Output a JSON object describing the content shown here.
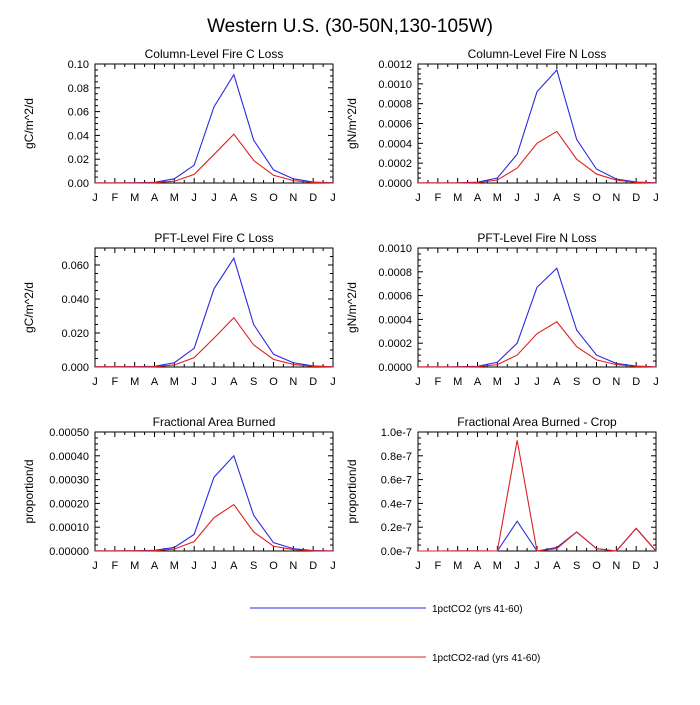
{
  "page": {
    "title": "Western U.S. (30-50N,130-105W)"
  },
  "legend": {
    "placement": "bottom-center",
    "entries": [
      {
        "name": "1pctCO2 (yrs 41-60)",
        "color": "#2a2ae0"
      },
      {
        "name": "1pctCO2-rad (yrs 41-60)",
        "color": "#e02020"
      }
    ]
  },
  "chart_data": [
    {
      "type": "line",
      "title": "Column-Level Fire C Loss",
      "ylabel": "gC/m^2/d",
      "categories": [
        "J",
        "F",
        "M",
        "A",
        "M",
        "J",
        "J",
        "A",
        "S",
        "O",
        "N",
        "D",
        "J"
      ],
      "ylim": [
        0,
        0.1
      ],
      "yticks": [
        0,
        0.02,
        0.04,
        0.06,
        0.08,
        0.1
      ],
      "ytick_labels": [
        "0.00",
        "0.02",
        "0.04",
        "0.06",
        "0.08",
        "0.10"
      ],
      "series": [
        {
          "name": "1pctCO2 (yrs 41-60)",
          "color": "#2a2ae0",
          "values": [
            0.0001,
            0.0001,
            0.0002,
            0.0006,
            0.0035,
            0.015,
            0.064,
            0.091,
            0.036,
            0.011,
            0.0035,
            0.0008,
            0.0002
          ]
        },
        {
          "name": "1pctCO2-rad (yrs 41-60)",
          "color": "#e02020",
          "values": [
            0.0001,
            0.0001,
            0.0001,
            0.0003,
            0.0015,
            0.0072,
            0.024,
            0.041,
            0.019,
            0.0065,
            0.002,
            0.0005,
            0.0001
          ]
        }
      ]
    },
    {
      "type": "line",
      "title": "Column-Level Fire N Loss",
      "ylabel": "gN/m^2/d",
      "categories": [
        "J",
        "F",
        "M",
        "A",
        "M",
        "J",
        "J",
        "A",
        "S",
        "O",
        "N",
        "D",
        "J"
      ],
      "ylim": [
        0,
        0.0012
      ],
      "yticks": [
        0,
        0.0002,
        0.0004,
        0.0006,
        0.0008,
        0.001,
        0.0012
      ],
      "ytick_labels": [
        "0.0000",
        "0.0002",
        "0.0004",
        "0.0006",
        "0.0008",
        "0.0010",
        "0.0012"
      ],
      "series": [
        {
          "name": "1pctCO2 (yrs 41-60)",
          "color": "#2a2ae0",
          "values": [
            1e-06,
            1e-06,
            2e-06,
            8e-06,
            5e-05,
            0.00029,
            0.00092,
            0.00114,
            0.00044,
            0.00014,
            4e-05,
            1e-05,
            2e-06
          ]
        },
        {
          "name": "1pctCO2-rad (yrs 41-60)",
          "color": "#e02020",
          "values": [
            1e-06,
            1e-06,
            1e-06,
            4e-06,
            3e-05,
            0.00015,
            0.0004,
            0.00052,
            0.00024,
            9e-05,
            3e-05,
            6e-06,
            1e-06
          ]
        }
      ]
    },
    {
      "type": "line",
      "title": "PFT-Level Fire C Loss",
      "ylabel": "gC/m^2/d",
      "categories": [
        "J",
        "F",
        "M",
        "A",
        "M",
        "J",
        "J",
        "A",
        "S",
        "O",
        "N",
        "D",
        "J"
      ],
      "ylim": [
        0,
        0.07
      ],
      "yticks": [
        0,
        0.02,
        0.04,
        0.06
      ],
      "ytick_labels": [
        "0.000",
        "0.020",
        "0.040",
        "0.060"
      ],
      "series": [
        {
          "name": "1pctCO2 (yrs 41-60)",
          "color": "#2a2ae0",
          "values": [
            0.0001,
            0.0001,
            0.0002,
            0.0004,
            0.0025,
            0.011,
            0.046,
            0.064,
            0.025,
            0.0075,
            0.0025,
            0.0006,
            0.0001
          ]
        },
        {
          "name": "1pctCO2-rad (yrs 41-60)",
          "color": "#e02020",
          "values": [
            0.0001,
            0.0001,
            0.0001,
            0.0002,
            0.0012,
            0.0055,
            0.017,
            0.029,
            0.013,
            0.0045,
            0.0015,
            0.0004,
            0.0001
          ]
        }
      ]
    },
    {
      "type": "line",
      "title": "PFT-Level Fire N Loss",
      "ylabel": "gN/m^2/d",
      "categories": [
        "J",
        "F",
        "M",
        "A",
        "M",
        "J",
        "J",
        "A",
        "S",
        "O",
        "N",
        "D",
        "J"
      ],
      "ylim": [
        0,
        0.001
      ],
      "yticks": [
        0,
        0.0002,
        0.0004,
        0.0006,
        0.0008,
        0.001
      ],
      "ytick_labels": [
        "0.0000",
        "0.0002",
        "0.0004",
        "0.0006",
        "0.0008",
        "0.0010"
      ],
      "series": [
        {
          "name": "1pctCO2 (yrs 41-60)",
          "color": "#2a2ae0",
          "values": [
            1e-06,
            1e-06,
            2e-06,
            6e-06,
            4e-05,
            0.0002,
            0.00067,
            0.00083,
            0.00031,
            0.0001,
            3e-05,
            8e-06,
            1e-06
          ]
        },
        {
          "name": "1pctCO2-rad (yrs 41-60)",
          "color": "#e02020",
          "values": [
            1e-06,
            1e-06,
            1e-06,
            3e-06,
            2e-05,
            0.0001,
            0.00028,
            0.00038,
            0.00017,
            6e-05,
            2e-05,
            5e-06,
            1e-06
          ]
        }
      ]
    },
    {
      "type": "line",
      "title": "Fractional Area Burned",
      "ylabel": "proportion/d",
      "categories": [
        "J",
        "F",
        "M",
        "A",
        "M",
        "J",
        "J",
        "A",
        "S",
        "O",
        "N",
        "D",
        "J"
      ],
      "ylim": [
        0,
        0.0005
      ],
      "yticks": [
        0,
        0.0001,
        0.0002,
        0.0003,
        0.0004,
        0.0005
      ],
      "ytick_labels": [
        "0.00000",
        "0.00010",
        "0.00020",
        "0.00030",
        "0.00040",
        "0.00050"
      ],
      "series": [
        {
          "name": "1pctCO2 (yrs 41-60)",
          "color": "#2a2ae0",
          "values": [
            5e-07,
            5e-07,
            1e-06,
            3e-06,
            1.5e-05,
            7e-05,
            0.00031,
            0.0004,
            0.00015,
            3.5e-05,
            1e-05,
            2e-06,
            5e-07
          ]
        },
        {
          "name": "1pctCO2-rad (yrs 41-60)",
          "color": "#e02020",
          "values": [
            5e-07,
            5e-07,
            8e-07,
            1.5e-06,
            8e-06,
            4e-05,
            0.00014,
            0.000195,
            8e-05,
            2e-05,
            6e-06,
            1e-06,
            5e-07
          ]
        }
      ]
    },
    {
      "type": "line",
      "title": "Fractional Area Burned - Crop",
      "ylabel": "proportion/d",
      "categories": [
        "J",
        "F",
        "M",
        "A",
        "M",
        "J",
        "J",
        "A",
        "S",
        "O",
        "N",
        "D",
        "J"
      ],
      "ylim": [
        0,
        1e-07
      ],
      "yticks": [
        0,
        2e-08,
        4e-08,
        6e-08,
        8e-08,
        1e-07
      ],
      "ytick_labels": [
        "0.0e-7",
        "0.2e-7",
        "0.4e-7",
        "0.6e-7",
        "0.8e-7",
        "1.0e-7"
      ],
      "series": [
        {
          "name": "1pctCO2 (yrs 41-60)",
          "color": "#2a2ae0",
          "values": [
            0,
            0,
            5e-11,
            5e-11,
            0,
            2.5e-08,
            0,
            3e-09,
            1.6e-08,
            2e-09,
            0,
            1.9e-08,
            0
          ]
        },
        {
          "name": "1pctCO2-rad (yrs 41-60)",
          "color": "#e02020",
          "values": [
            0,
            0,
            5e-11,
            5e-11,
            0,
            9.3e-08,
            0,
            2e-09,
            1.6e-08,
            2e-09,
            0,
            1.9e-08,
            0
          ]
        }
      ]
    }
  ]
}
